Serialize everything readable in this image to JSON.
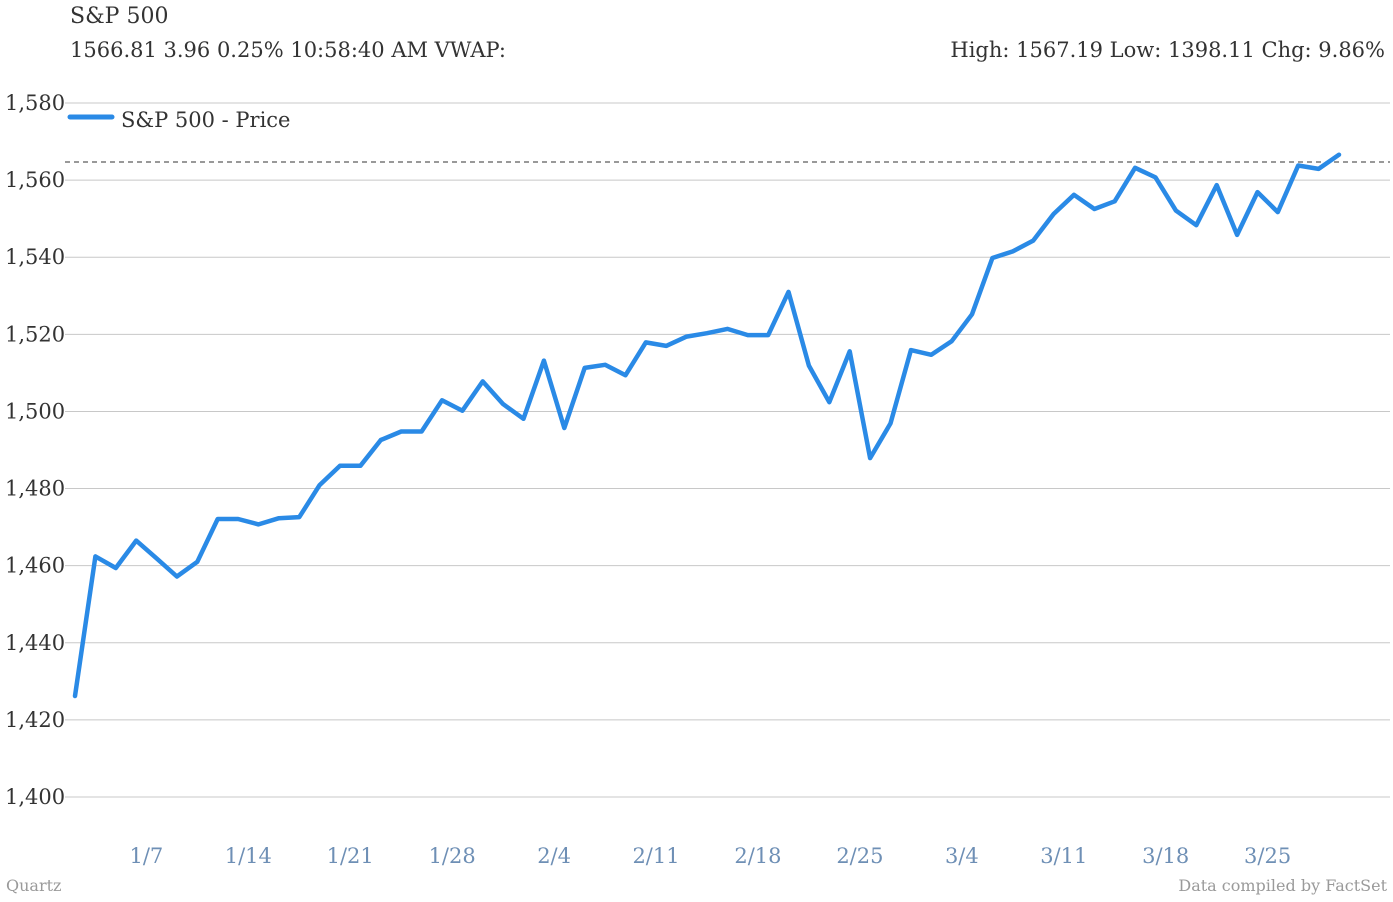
{
  "header": {
    "title": "S&P 500",
    "quote_left": "1566.81 3.96 0.25% 10:58:40 AM VWAP:",
    "quote_right": "High: 1567.19 Low: 1398.11 Chg: 9.86%"
  },
  "footer": {
    "credit": "Quartz",
    "source": "Data compiled by FactSet"
  },
  "colors": {
    "line": "#2a8ae6",
    "grid": "#c8c8c8",
    "xtick": "#6e8fb5",
    "ref_line": "#333333"
  },
  "chart_data": {
    "type": "line",
    "title": "S&P 500",
    "ylim": [
      1400,
      1580
    ],
    "yticks": [
      1400,
      1420,
      1440,
      1460,
      1480,
      1500,
      1520,
      1540,
      1560,
      1580
    ],
    "ytick_labels": [
      "1,400",
      "1,420",
      "1,440",
      "1,460",
      "1,480",
      "1,500",
      "1,520",
      "1,540",
      "1,560",
      "1,580"
    ],
    "xtick_labels": [
      "1/7",
      "1/14",
      "1/21",
      "1/28",
      "2/4",
      "2/11",
      "2/18",
      "2/25",
      "3/4",
      "3/11",
      "3/18",
      "3/25"
    ],
    "reference_line": {
      "value": 1564.7,
      "style": "dashed"
    },
    "legend": {
      "position": "top-left"
    },
    "grid": true,
    "series": [
      {
        "name": "S&P 500 - Price",
        "values": [
          1426.2,
          1462.4,
          1459.4,
          1466.5,
          1461.9,
          1457.2,
          1461.0,
          1472.1,
          1472.1,
          1470.7,
          1472.3,
          1472.6,
          1480.9,
          1485.9,
          1485.9,
          1492.6,
          1494.8,
          1494.8,
          1502.9,
          1500.2,
          1507.8,
          1501.9,
          1498.1,
          1513.2,
          1495.7,
          1511.3,
          1512.1,
          1509.4,
          1517.9,
          1517.0,
          1519.4,
          1520.3,
          1521.4,
          1519.8,
          1519.8,
          1531.0,
          1511.9,
          1502.4,
          1515.6,
          1487.9,
          1496.9,
          1515.9,
          1514.7,
          1518.2,
          1525.2,
          1539.8,
          1541.5,
          1544.3,
          1551.2,
          1556.2,
          1552.5,
          1554.5,
          1563.2,
          1560.7,
          1552.1,
          1548.3,
          1558.7,
          1545.8,
          1556.9,
          1551.7,
          1563.8,
          1562.9,
          1566.6
        ]
      }
    ]
  }
}
